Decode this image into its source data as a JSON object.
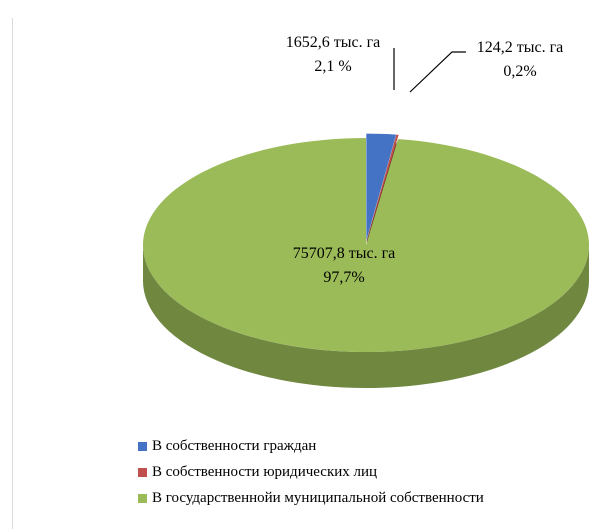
{
  "chart_data": {
    "type": "pie",
    "style": "3d",
    "series": [
      {
        "name": "",
        "slices": [
          {
            "label": "В собственности граждан",
            "value": 1652.6,
            "value_text": "1652,6 тыс. га",
            "percent": 2.1,
            "percent_text": "2,1 %",
            "color": "#4472c4"
          },
          {
            "label": "В собственности юридических лиц",
            "value": 124.2,
            "value_text": "124,2 тыс. га",
            "percent": 0.2,
            "percent_text": "0,2%",
            "color": "#c0504d"
          },
          {
            "label": "В государственной и муниципальной собственности",
            "value": 75707.8,
            "value_text": "75707,8 тыс. га",
            "percent": 97.7,
            "percent_text": "97,7%",
            "color": "#9bbb59"
          }
        ]
      }
    ],
    "legend_position": "bottom-left",
    "legend": [
      "В собственности граждан",
      "В собственности юридических лиц",
      "В государственнойи муниципальной собственности"
    ]
  }
}
